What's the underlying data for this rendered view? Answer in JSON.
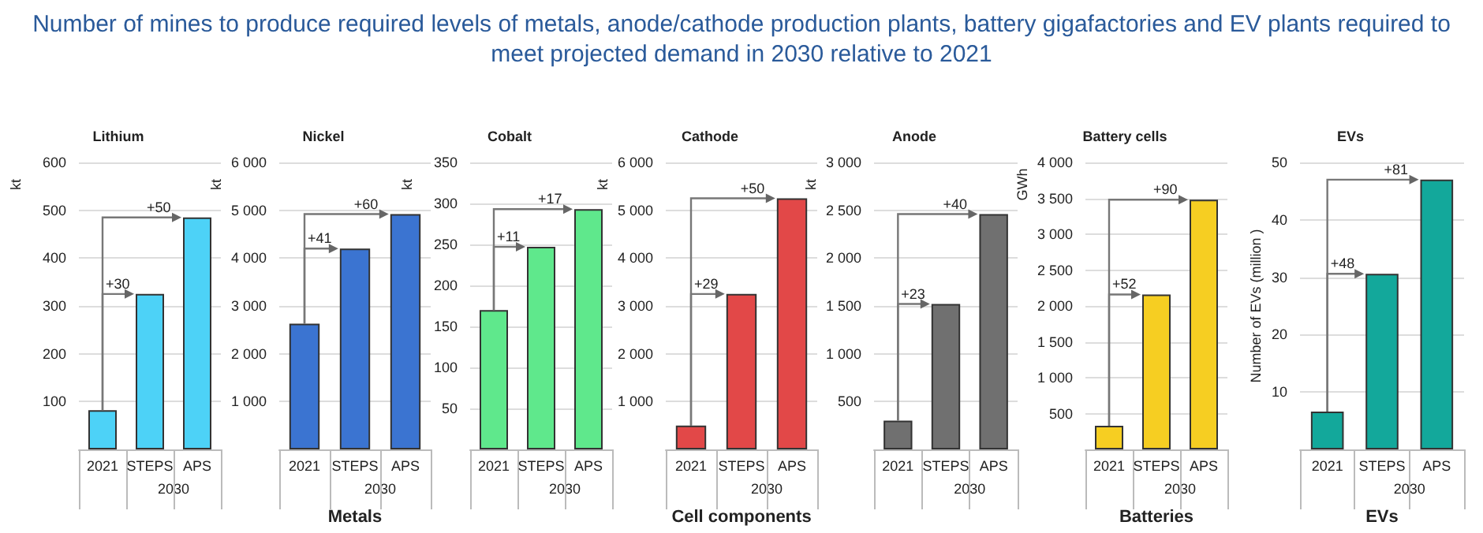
{
  "chart_data": [
    {
      "type": "bar",
      "title": "Lithium",
      "ylabel": "kt",
      "xlabel": "2030",
      "categories": [
        "2021",
        "STEPS",
        "APS"
      ],
      "values": [
        82,
        325,
        485
      ],
      "color": "#4dd2f7",
      "ylim": [
        0,
        600
      ],
      "yticks": [
        100,
        200,
        300,
        400,
        500,
        600
      ],
      "grid": "y",
      "annotations": [
        "Number of mines to produce required levels of metals, anode/cathode production plants, battery gigafactories and EV plants required to meet projected demand in 2030 relative to 2021",
        {
          "text": "+30",
          "x": "STEPS",
          "y": 325
        },
        {
          "text": "+50",
          "x": "APS",
          "y": 485
        }
      ]
    },
    {
      "type": "bar",
      "title": "Nickel",
      "ylabel": "kt",
      "xlabel": "2030",
      "categories": [
        "2021",
        "STEPS",
        "APS"
      ],
      "values": [
        2630,
        4200,
        4920
      ],
      "color": "#3b74d1",
      "ylim": [
        0,
        6000
      ],
      "yticks": [
        {
          "value": 1000,
          "label": "1 000"
        },
        {
          "value": 2000,
          "label": "2 000"
        },
        {
          "value": 3000,
          "label": "3 000"
        },
        {
          "value": 4000,
          "label": "4 000"
        },
        {
          "value": 5000,
          "label": "5 000"
        },
        {
          "value": 6000,
          "label": "6 000"
        }
      ],
      "grid": "y",
      "annotations": [
        "Metals",
        {
          "text": "+41",
          "x": "STEPS",
          "y": 4200
        },
        {
          "text": "+60",
          "x": "APS",
          "y": 4920
        }
      ]
    },
    {
      "type": "bar",
      "title": "Cobalt",
      "ylabel": "kt",
      "xlabel": "2030",
      "categories": [
        "2021",
        "STEPS",
        "APS"
      ],
      "values": [
        170,
        247,
        293
      ],
      "color": "#5fe88c",
      "ylim": [
        0,
        350
      ],
      "yticks": [
        50,
        100,
        150,
        200,
        250,
        300,
        350
      ],
      "grid": "y",
      "annotations": [
        {
          "text": "+11",
          "x": "STEPS",
          "y": 247
        },
        {
          "text": "+17",
          "x": "APS",
          "y": 293
        }
      ]
    },
    {
      "type": "bar",
      "title": "Cathode",
      "ylabel": "kt",
      "xlabel": "2030",
      "categories": [
        "2021",
        "STEPS",
        "APS"
      ],
      "values": [
        500,
        3250,
        5250
      ],
      "color": "#e24848",
      "ylim": [
        0,
        6000
      ],
      "yticks": [
        {
          "value": 1000,
          "label": "1 000"
        },
        {
          "value": 2000,
          "label": "2 000"
        },
        {
          "value": 3000,
          "label": "3 000"
        },
        {
          "value": 4000,
          "label": "4 000"
        },
        {
          "value": 5000,
          "label": "5 000"
        },
        {
          "value": 6000,
          "label": "6 000"
        }
      ],
      "grid": "y",
      "annotations": [
        "Cell components",
        {
          "text": "+29",
          "x": "STEPS",
          "y": 3250
        },
        {
          "text": "+50",
          "x": "APS",
          "y": 5250
        }
      ]
    },
    {
      "type": "bar",
      "title": "Anode",
      "ylabel": "kt",
      "xlabel": "2030",
      "categories": [
        "2021",
        "STEPS",
        "APS"
      ],
      "values": [
        300,
        1520,
        2460
      ],
      "color": "#707070",
      "ylim": [
        0,
        3000
      ],
      "yticks": [
        500,
        {
          "value": 1000,
          "label": "1 000"
        },
        {
          "value": 1500,
          "label": "1 500"
        },
        {
          "value": 2000,
          "label": "2 000"
        },
        {
          "value": 2500,
          "label": "2 500"
        },
        {
          "value": 3000,
          "label": "3 000"
        }
      ],
      "grid": "y",
      "annotations": [
        {
          "text": "+23",
          "x": "STEPS",
          "y": 1520
        },
        {
          "text": "+40",
          "x": "APS",
          "y": 2460
        }
      ]
    },
    {
      "type": "bar",
      "title": "Battery cells",
      "ylabel": "GWh",
      "xlabel": "2030",
      "categories": [
        "2021",
        "STEPS",
        "APS"
      ],
      "values": [
        330,
        2160,
        3480
      ],
      "color": "#f6ce22",
      "ylim": [
        0,
        4000
      ],
      "yticks": [
        500,
        {
          "value": 1000,
          "label": "1 000"
        },
        {
          "value": 1500,
          "label": "1 500"
        },
        {
          "value": 2000,
          "label": "2 000"
        },
        {
          "value": 2500,
          "label": "2 500"
        },
        {
          "value": 3000,
          "label": "3 000"
        },
        {
          "value": 3500,
          "label": "3 500"
        },
        {
          "value": 4000,
          "label": "4 000"
        }
      ],
      "grid": "y",
      "annotations": [
        "Batteries",
        {
          "text": "+52",
          "x": "STEPS",
          "y": 2160
        },
        {
          "text": "+90",
          "x": "APS",
          "y": 3480
        }
      ]
    },
    {
      "type": "bar",
      "title": "EVs",
      "ylabel": "Number of EVs (million )",
      "xlabel": "2030",
      "categories": [
        "2021",
        "STEPS",
        "APS"
      ],
      "values": [
        6.6,
        30.6,
        47
      ],
      "color": "#13a89b",
      "ylim": [
        0,
        50
      ],
      "yticks": [
        10,
        20,
        30,
        40,
        50
      ],
      "grid": "y",
      "annotations": [
        "EVs",
        {
          "text": "+48",
          "x": "STEPS",
          "y": 30.6
        },
        {
          "text": "+81",
          "x": "APS",
          "y": 47
        }
      ]
    }
  ]
}
